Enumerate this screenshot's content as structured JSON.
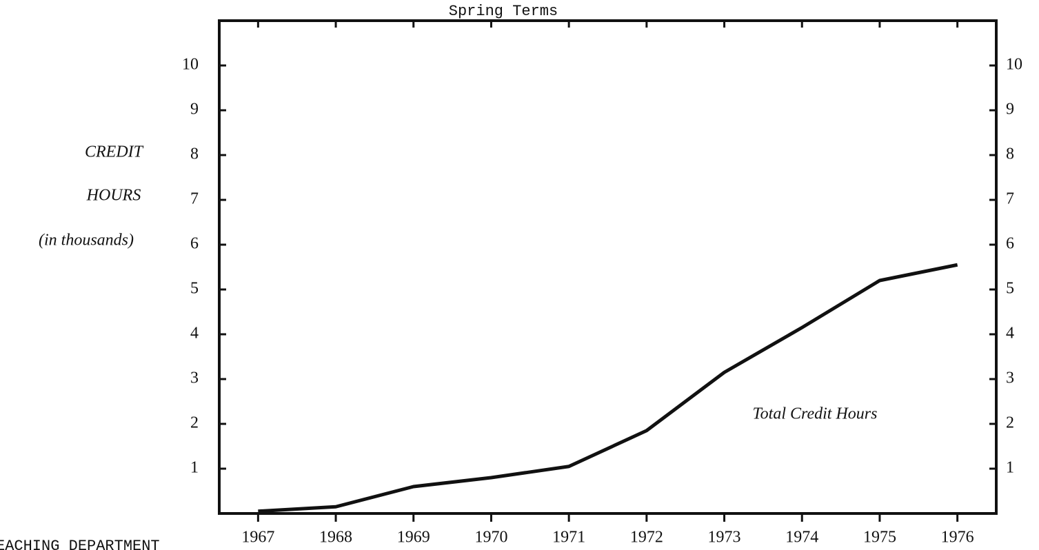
{
  "chart_data": {
    "type": "line",
    "title": "Spring Terms",
    "y_label": [
      "CREDIT",
      "HOURS",
      "(in thousands)"
    ],
    "annotations": [
      "Total Credit Hours",
      "EACHING DEPARTMENT"
    ],
    "categories": [
      "1967",
      "1968",
      "1969",
      "1970",
      "1971",
      "1972",
      "1973",
      "1974",
      "1975",
      "1976"
    ],
    "series": [
      {
        "name": "Total Credit Hours",
        "color": "#111111",
        "values": [
          0.05,
          0.15,
          0.6,
          0.8,
          1.05,
          1.85,
          3.15,
          4.15,
          5.2,
          5.55
        ]
      }
    ],
    "ylim": [
      0,
      11
    ],
    "yticks": [
      1,
      2,
      3,
      4,
      5,
      6,
      7,
      8,
      9,
      10
    ],
    "y2lim": [
      0,
      11
    ],
    "y2ticks": [
      1,
      2,
      3,
      4,
      5,
      6,
      7,
      8,
      9,
      10
    ],
    "grid": false
  }
}
